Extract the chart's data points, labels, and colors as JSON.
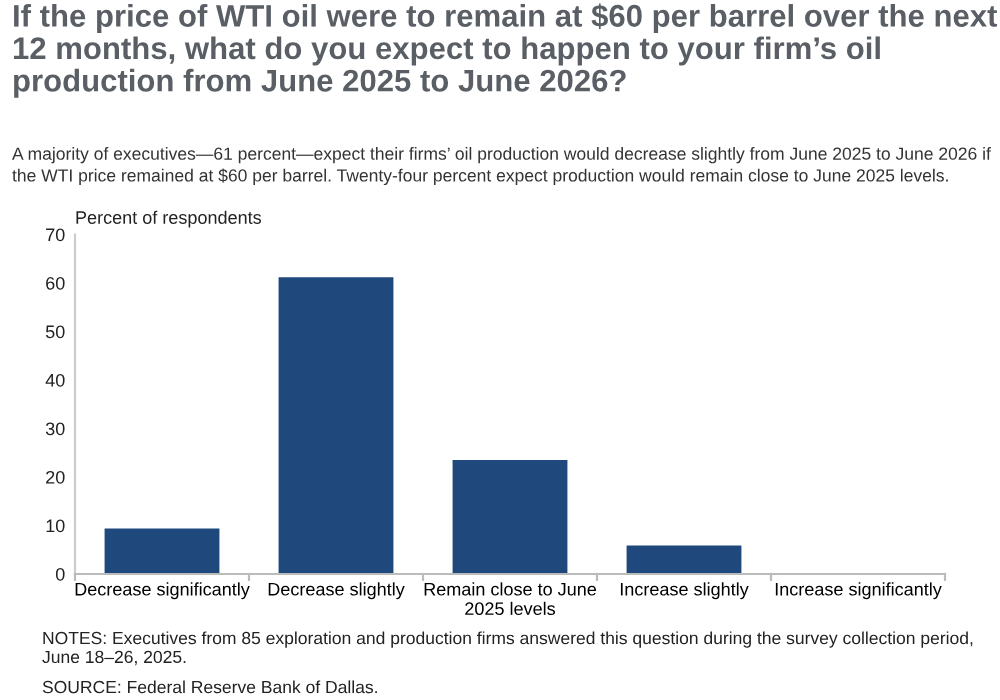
{
  "chart_data": {
    "type": "bar",
    "title": "If the price of WTI oil were to remain at $60 per barrel over the next 12 months, what do you expect to happen to your firm’s oil production from June 2025 to June 2026?",
    "subtitle": "A majority of executives—61 percent—expect their firms’ oil production would decrease slightly from June 2025 to June 2026 if the WTI price remained at $60 per barrel. Twenty-four percent expect production would remain close to June 2025 levels.",
    "ylabel": "Percent of respondents",
    "categories": [
      "Decrease significantly",
      "Decrease slightly",
      "Remain close to June 2025 levels",
      "Increase slightly",
      "Increase significantly"
    ],
    "values": [
      9.4,
      61.2,
      23.5,
      5.9,
      0
    ],
    "color": "#1f497d",
    "ylim": [
      0,
      70
    ],
    "yticks": [
      0,
      10,
      20,
      30,
      40,
      50,
      60,
      70
    ],
    "annotations": [
      "NOTES: Executives from 85 exploration and production firms answered this question during the survey collection period, June 18–26, 2025.",
      "SOURCE: Federal Reserve Bank of Dallas."
    ]
  }
}
